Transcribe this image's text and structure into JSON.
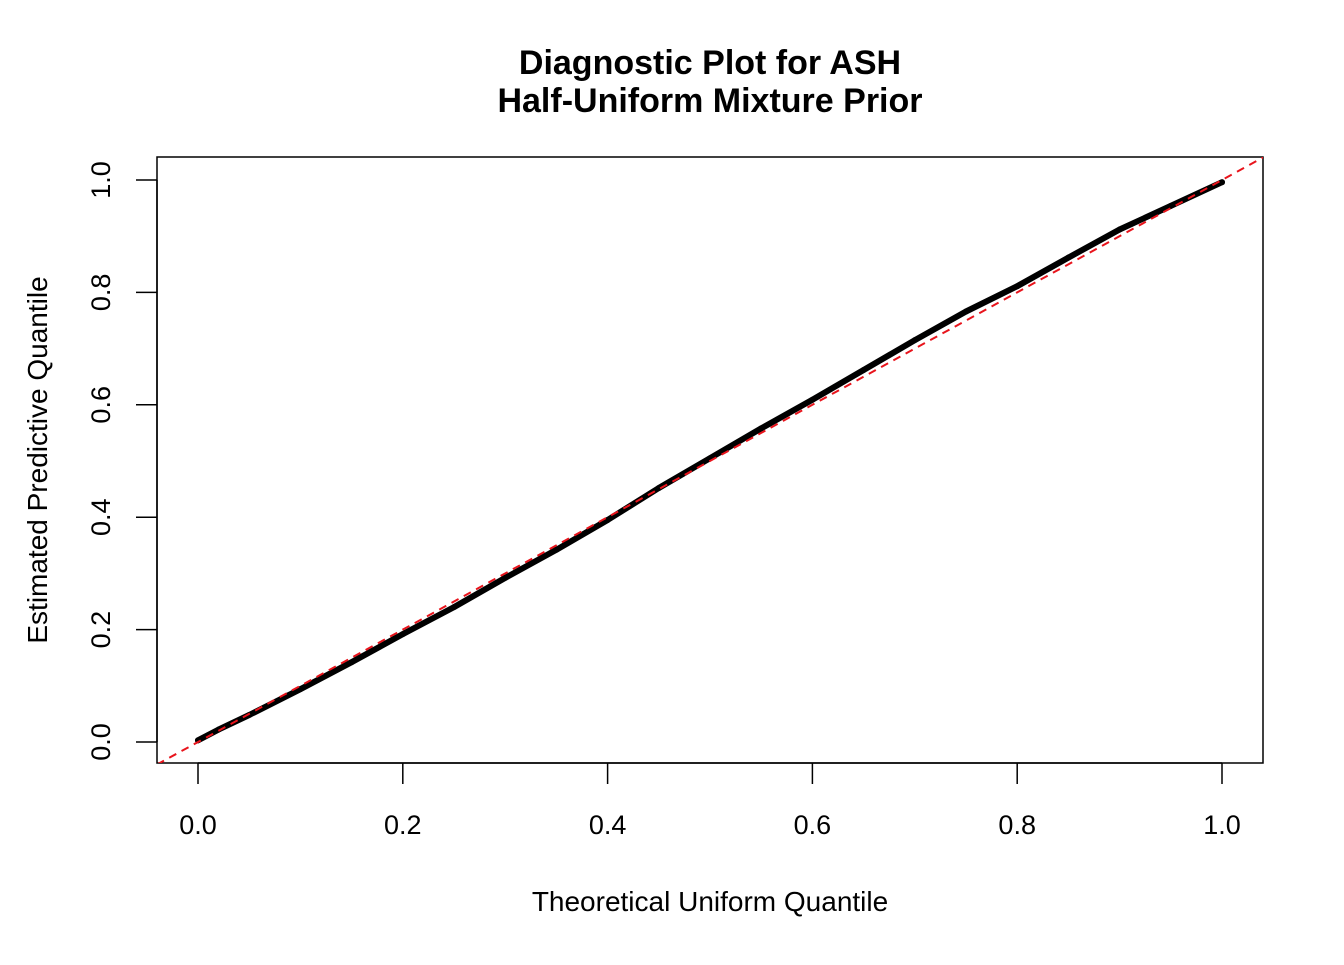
{
  "chart_data": {
    "type": "line",
    "title": "Diagnostic Plot for ASH",
    "subtitle": "Half-Uniform Mixture Prior",
    "xlabel": "Theoretical Uniform Quantile",
    "ylabel": "Estimated Predictive Quantile",
    "xlim": [
      0.0,
      1.0
    ],
    "ylim": [
      0.0,
      1.0
    ],
    "x_ticks": [
      "0.0",
      "0.2",
      "0.4",
      "0.6",
      "0.8",
      "1.0"
    ],
    "y_ticks": [
      "0.0",
      "0.2",
      "0.4",
      "0.6",
      "0.8",
      "1.0"
    ],
    "grid": false,
    "series": [
      {
        "style": "thick black line of points",
        "color": "#000000",
        "x": [
          0.0,
          0.02,
          0.05,
          0.1,
          0.15,
          0.2,
          0.25,
          0.3,
          0.35,
          0.4,
          0.45,
          0.5,
          0.55,
          0.6,
          0.65,
          0.7,
          0.75,
          0.8,
          0.85,
          0.9,
          0.95,
          1.0
        ],
        "y": [
          0.003,
          0.022,
          0.048,
          0.094,
          0.142,
          0.192,
          0.24,
          0.292,
          0.342,
          0.395,
          0.452,
          0.505,
          0.558,
          0.609,
          0.662,
          0.715,
          0.766,
          0.811,
          0.862,
          0.912,
          0.954,
          0.996
        ]
      }
    ],
    "reference_line": {
      "style": "dashed",
      "color": "#e8141c",
      "slope": 1,
      "intercept": 0
    }
  }
}
